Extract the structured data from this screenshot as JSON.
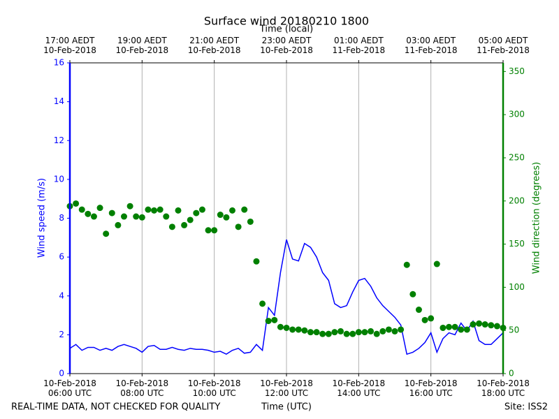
{
  "chart_data": {
    "type": "line",
    "title": "Surface wind 20180210 1800",
    "x_label": "Time (UTC)",
    "x2_label": "Time (local)",
    "y_label": "Wind speed (m/s)",
    "y2_label": "Wind direction (degrees)",
    "footer_left": "REAL-TIME DATA, NOT CHECKED FOR QUALITY",
    "footer_right": "Site: ISS2",
    "x": [
      "06:00",
      "06:10",
      "06:20",
      "06:30",
      "06:40",
      "06:50",
      "07:00",
      "07:10",
      "07:20",
      "07:30",
      "07:40",
      "07:50",
      "08:00",
      "08:10",
      "08:20",
      "08:30",
      "08:40",
      "08:50",
      "09:00",
      "09:10",
      "09:20",
      "09:30",
      "09:40",
      "09:50",
      "10:00",
      "10:10",
      "10:20",
      "10:30",
      "10:40",
      "10:50",
      "11:00",
      "11:10",
      "11:20",
      "11:30",
      "11:40",
      "11:50",
      "12:00",
      "12:10",
      "12:20",
      "12:30",
      "12:40",
      "12:50",
      "13:00",
      "13:10",
      "13:20",
      "13:30",
      "13:40",
      "13:50",
      "14:00",
      "14:10",
      "14:20",
      "14:30",
      "14:40",
      "14:50",
      "15:00",
      "15:10",
      "15:20",
      "15:30",
      "15:40",
      "15:50",
      "16:00",
      "16:10",
      "16:20",
      "16:30",
      "16:40",
      "16:50",
      "17:00",
      "17:10",
      "17:20",
      "17:30",
      "17:40",
      "17:50",
      "18:00"
    ],
    "series": [
      {
        "type": "line",
        "color": "#0000ff",
        "values": [
          1.3,
          1.5,
          1.2,
          1.35,
          1.35,
          1.2,
          1.3,
          1.2,
          1.4,
          1.5,
          1.4,
          1.3,
          1.1,
          1.4,
          1.45,
          1.25,
          1.25,
          1.35,
          1.25,
          1.2,
          1.3,
          1.25,
          1.25,
          1.2,
          1.1,
          1.15,
          1.0,
          1.2,
          1.3,
          1.05,
          1.1,
          1.5,
          1.2,
          3.4,
          3.0,
          5.2,
          6.9,
          5.9,
          5.8,
          6.7,
          6.5,
          6.0,
          5.2,
          4.8,
          3.6,
          3.4,
          3.5,
          4.2,
          4.8,
          4.9,
          4.5,
          3.9,
          3.5,
          3.2,
          2.9,
          2.5,
          1.0,
          1.1,
          1.3,
          1.6,
          2.1,
          1.1,
          1.8,
          2.1,
          2.0,
          2.6,
          2.2,
          2.7,
          1.7,
          1.5,
          1.5,
          1.8,
          2.1
        ]
      },
      {
        "type": "scatter",
        "axis": "y2",
        "color": "#008000",
        "values": [
          194,
          197,
          190,
          185,
          182,
          192,
          162,
          186,
          172,
          182,
          194,
          182,
          181,
          190,
          189,
          190,
          182,
          170,
          189,
          172,
          178,
          186,
          190,
          166,
          166,
          184,
          181,
          189,
          170,
          190,
          176,
          130,
          81,
          61,
          62,
          54,
          53,
          51,
          51,
          50,
          48,
          48,
          46,
          46,
          48,
          49,
          46,
          46,
          48,
          48,
          49,
          46,
          49,
          51,
          49,
          51,
          126,
          92,
          74,
          62,
          64,
          127,
          53,
          54,
          54,
          51,
          51,
          57,
          58,
          57,
          56,
          55,
          53
        ]
      }
    ],
    "xlim": [
      "06:00",
      "18:00"
    ],
    "xticks": [
      {
        "value": "06:00",
        "label": "10-Feb-2018\n06:00 UTC"
      },
      {
        "value": "08:00",
        "label": "10-Feb-2018\n08:00 UTC"
      },
      {
        "value": "10:00",
        "label": "10-Feb-2018\n10:00 UTC"
      },
      {
        "value": "12:00",
        "label": "10-Feb-2018\n12:00 UTC"
      },
      {
        "value": "14:00",
        "label": "10-Feb-2018\n14:00 UTC"
      },
      {
        "value": "16:00",
        "label": "10-Feb-2018\n16:00 UTC"
      },
      {
        "value": "18:00",
        "label": "10-Feb-2018\n18:00 UTC"
      }
    ],
    "x2ticks": [
      {
        "value": "06:00",
        "label": "17:00 AEDT\n10-Feb-2018"
      },
      {
        "value": "08:00",
        "label": "19:00 AEDT\n10-Feb-2018"
      },
      {
        "value": "10:00",
        "label": "21:00 AEDT\n10-Feb-2018"
      },
      {
        "value": "12:00",
        "label": "23:00 AEDT\n10-Feb-2018"
      },
      {
        "value": "14:00",
        "label": "01:00 AEDT\n11-Feb-2018"
      },
      {
        "value": "16:00",
        "label": "03:00 AEDT\n11-Feb-2018"
      },
      {
        "value": "18:00",
        "label": "05:00 AEDT\n11-Feb-2018"
      }
    ],
    "ylim": [
      0,
      16
    ],
    "yticks": [
      0,
      2,
      4,
      6,
      8,
      10,
      12,
      14,
      16
    ],
    "y2lim": [
      0,
      360
    ],
    "y2ticks": [
      0,
      50,
      100,
      150,
      200,
      250,
      300,
      350
    ],
    "grid": true
  }
}
